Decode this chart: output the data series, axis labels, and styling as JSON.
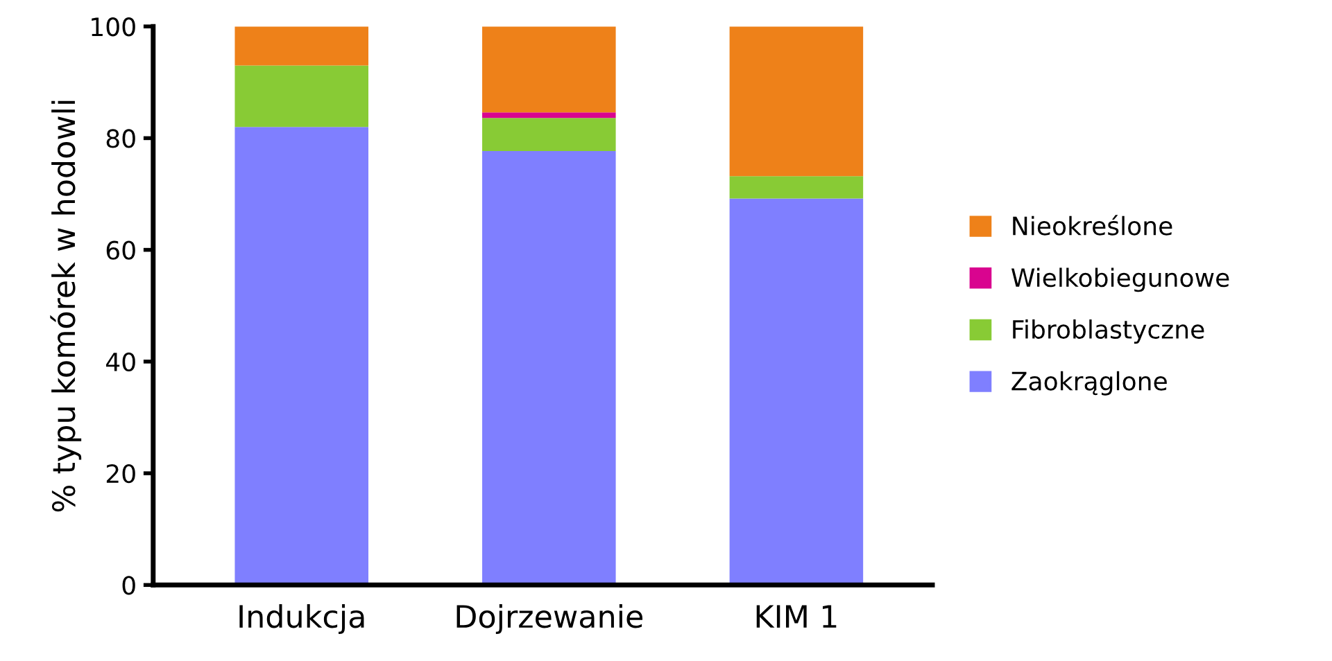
{
  "chart_data": {
    "type": "bar",
    "stacked": true,
    "ylabel": "% typu komórek w hodowli",
    "categories": [
      "Indukcja",
      "Dojrzewanie",
      "KIM 1"
    ],
    "series": [
      {
        "name": "Zaokrąglone",
        "color": "#7f7fff",
        "values": [
          82,
          77.7,
          69.2
        ]
      },
      {
        "name": "Fibroblastyczne",
        "color": "#88cb35",
        "values": [
          11,
          5.9,
          4
        ]
      },
      {
        "name": "Wielkobiegunowe",
        "color": "#d9048f",
        "values": [
          0,
          1,
          0
        ]
      },
      {
        "name": "Nieokreślone",
        "color": "#ee8119",
        "values": [
          7,
          15.4,
          26.8
        ]
      }
    ],
    "ylim": [
      0,
      100
    ],
    "yticks": [
      0,
      20,
      40,
      60,
      80,
      100
    ],
    "grid": false,
    "legend": "right"
  }
}
